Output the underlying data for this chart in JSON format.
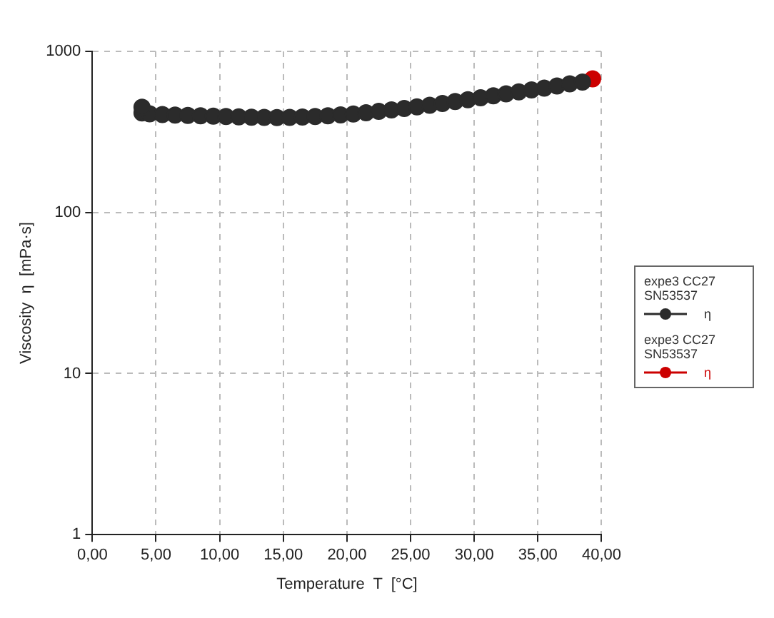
{
  "chart_data": {
    "type": "scatter",
    "xlabel": "Temperature  T  [°C]",
    "ylabel": "Viscosity  η  [mPa·s]",
    "legend_title": "expe3 CC27 SN53537",
    "log": "y",
    "grid": true,
    "legend": "right",
    "marker": "circle",
    "xlim": [
      0,
      40
    ],
    "ylim": [
      1,
      1000
    ],
    "xticks": [
      {
        "value": 0,
        "label": "0,00"
      },
      {
        "value": 5,
        "label": "5,00"
      },
      {
        "value": 10,
        "label": "10,00"
      },
      {
        "value": 15,
        "label": "15,00"
      },
      {
        "value": 20,
        "label": "20,00"
      },
      {
        "value": 25,
        "label": "25,00"
      },
      {
        "value": 30,
        "label": "30,00"
      },
      {
        "value": 35,
        "label": "35,00"
      },
      {
        "value": 40,
        "label": "40,00"
      }
    ],
    "yticks": [
      1,
      10,
      100,
      1000
    ],
    "series": [
      {
        "name": "η",
        "color": "#2b2b2b",
        "x": [
          3.9,
          4.5,
          5.5,
          6.5,
          7.5,
          8.5,
          9.5,
          10.5,
          11.5,
          12.5,
          13.5,
          14.5,
          15.5,
          16.5,
          17.5,
          18.5,
          19.5,
          20.5,
          21.5,
          22.5,
          23.5,
          24.5,
          25.5,
          26.5,
          27.5,
          28.5,
          29.5,
          30.5,
          31.5,
          32.5,
          33.5,
          34.5,
          35.5,
          36.5,
          37.5,
          38.5,
          3.9
        ],
        "values": [
          415,
          410,
          405,
          402,
          400,
          398,
          396,
          394,
          392,
          390,
          389,
          388,
          389,
          391,
          394,
          398,
          403,
          409,
          416,
          424,
          433,
          442,
          452,
          463,
          475,
          488,
          501,
          515,
          530,
          545,
          560,
          576,
          592,
          610,
          628,
          645,
          450
        ]
      },
      {
        "name": "η",
        "color": "#cc0000",
        "x": [
          39.3
        ],
        "values": [
          675
        ]
      }
    ]
  }
}
